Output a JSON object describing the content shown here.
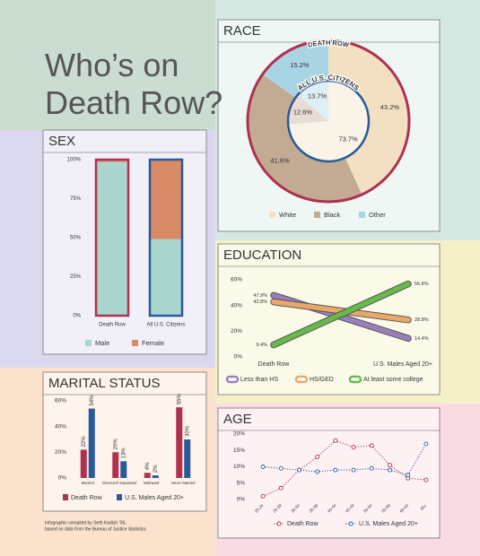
{
  "title": "Who’s on Death Row?",
  "credits": [
    "Infographic compiled by Seth Kadish ’06,",
    "based on data from the Bureau of Justice Statistics"
  ],
  "chart_data": [
    {
      "type": "stacked-bar",
      "title": "SEX",
      "categories": [
        "Death Row",
        "All U.S. Citizens"
      ],
      "series": [
        {
          "name": "Male",
          "color": "#a9d6cf",
          "values": [
            98.5,
            49
          ]
        },
        {
          "name": "Female",
          "color": "#d98a66",
          "values": [
            1.5,
            51
          ]
        }
      ],
      "bar_outlines": [
        "#b0304f",
        "#2a5a9a"
      ],
      "ylim": [
        0,
        100
      ],
      "yticks": [
        {
          "value": 0,
          "label": "0%"
        },
        {
          "value": 25,
          "label": "25%"
        },
        {
          "value": 50,
          "label": "50%"
        },
        {
          "value": 75,
          "label": "75%"
        },
        {
          "value": 100,
          "label": "100%"
        }
      ]
    },
    {
      "type": "donut",
      "title": "RACE",
      "categories": [
        "White",
        "Black",
        "Other"
      ],
      "colors": [
        "#f3e0c2",
        "#c2ab92",
        "#a9d4e4"
      ],
      "ring_colors": [
        "#b0304f",
        "#2a5a9a"
      ],
      "rings": [
        {
          "name": "DEATH ROW",
          "values": [
            43.2,
            41.6,
            15.2
          ],
          "value_labels": [
            "43.2%",
            "41.6%",
            "15.2%"
          ]
        },
        {
          "name": "ALL U.S. CITIZENS",
          "values": [
            73.7,
            12.6,
            13.7
          ],
          "value_labels": [
            "73.7%",
            "12.6%",
            "13.7%"
          ]
        }
      ]
    },
    {
      "type": "slope",
      "title": "EDUCATION",
      "categories": [
        "Death Row",
        "U.S. Males Aged 20+"
      ],
      "series": [
        {
          "name": "Less than HS",
          "color": "#9a7fbb",
          "values": [
            47.9,
            14.4
          ],
          "value_labels": [
            "47.9%",
            "14.4%"
          ]
        },
        {
          "name": "HS/GED",
          "color": "#e9a86a",
          "values": [
            42.8,
            28.8
          ],
          "value_labels": [
            "42.8%",
            "28.8%"
          ]
        },
        {
          "name": "At least some college",
          "color": "#67ba4a",
          "values": [
            9.4,
            56.8
          ],
          "value_labels": [
            "9.4%",
            "56.8%"
          ]
        }
      ],
      "ylim": [
        0,
        60
      ],
      "yticks": [
        {
          "value": 0,
          "label": "0%"
        },
        {
          "value": 20,
          "label": "20%"
        },
        {
          "value": 40,
          "label": "40%"
        },
        {
          "value": 60,
          "label": "60%"
        }
      ]
    },
    {
      "type": "grouped-bar",
      "title": "MARITAL STATUS",
      "categories": [
        "Married",
        "Divorced/ Separated",
        "Widowed",
        "Never Married"
      ],
      "series": [
        {
          "name": "Death Row",
          "color": "#b0304f",
          "values": [
            22,
            20,
            4,
            55
          ],
          "value_labels": [
            "22%",
            "20%",
            "4%",
            "55%"
          ]
        },
        {
          "name": "U.S. Males Aged 20+",
          "color": "#2a5a9a",
          "values": [
            54,
            13,
            2,
            30
          ],
          "value_labels": [
            "54%",
            "13%",
            "2%",
            "30%"
          ]
        }
      ],
      "ylim": [
        0,
        60
      ],
      "yticks": [
        {
          "value": 0,
          "label": "0%"
        },
        {
          "value": 20,
          "label": "20%"
        },
        {
          "value": 40,
          "label": "40%"
        },
        {
          "value": 60,
          "label": "60%"
        }
      ]
    },
    {
      "type": "line",
      "title": "AGE",
      "categories": [
        "20-24",
        "25-29",
        "30-34",
        "35-39",
        "40-44",
        "45-49",
        "50-54",
        "55-59",
        "60-64",
        "65+"
      ],
      "series": [
        {
          "name": "Death Row",
          "color": "#b0304f",
          "values": [
            1,
            3.5,
            9,
            13,
            18,
            16,
            16.5,
            10.5,
            6.5,
            6
          ]
        },
        {
          "name": "U.S. Males Aged 20+",
          "color": "#2a5a9a",
          "values": [
            10,
            9.5,
            9,
            8.5,
            9,
            9,
            9.5,
            9,
            7.5,
            17
          ]
        }
      ],
      "line_style": "dotted",
      "ylim": [
        0,
        20
      ],
      "yticks": [
        {
          "value": 0,
          "label": "0%"
        },
        {
          "value": 5,
          "label": "5%"
        },
        {
          "value": 10,
          "label": "10%"
        },
        {
          "value": 15,
          "label": "15%"
        },
        {
          "value": 20,
          "label": "20%"
        }
      ]
    }
  ]
}
